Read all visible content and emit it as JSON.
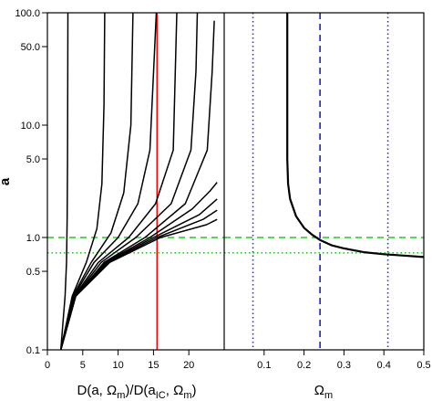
{
  "chart_data": [
    {
      "type": "line",
      "panel": "left",
      "xlabel": "D(a, Ωm)/D(aIC, Ωm)",
      "xlabel_parts": {
        "main": "D(a, Ω",
        "sub1": "m",
        "mid": ")/D(a",
        "sub2": "IC",
        "mid2": ", Ω",
        "sub3": "m",
        "end": ")"
      },
      "ylabel": "a",
      "xlim": [
        0,
        25
      ],
      "ylim": [
        0.1,
        100
      ],
      "yscale": "log",
      "xticks": [
        0,
        5,
        10,
        15,
        20
      ],
      "xtick_labels": [
        "0",
        "5",
        "10",
        "15",
        "20"
      ],
      "yticks": [
        0.1,
        0.5,
        1.0,
        5.0,
        10.0,
        50.0,
        100.0
      ],
      "ytick_labels": [
        "0.1",
        "0.5",
        "1.0",
        "5.0",
        "10.0",
        "50.0",
        "100.0"
      ],
      "grid": false,
      "series": [
        {
          "values_x": [
            1.9,
            2.5,
            2.7,
            2.8,
            2.85,
            2.88,
            2.9
          ],
          "values_y": [
            0.1,
            0.3,
            0.6,
            1.5,
            5,
            20,
            100
          ]
        },
        {
          "values_x": [
            1.9,
            3.5,
            5.5,
            7.0,
            7.7,
            8.0,
            8.1
          ],
          "values_y": [
            0.1,
            0.3,
            0.6,
            1.2,
            3,
            15,
            100
          ]
        },
        {
          "values_x": [
            1.9,
            3.6,
            6.2,
            9.0,
            10.8,
            11.8,
            12.1
          ],
          "values_y": [
            0.1,
            0.3,
            0.6,
            1.1,
            2.5,
            10,
            100
          ]
        },
        {
          "values_x": [
            1.9,
            3.7,
            6.6,
            10.0,
            12.8,
            14.5,
            15.4
          ],
          "values_y": [
            0.1,
            0.3,
            0.6,
            1.0,
            2.0,
            6,
            100
          ]
        },
        {
          "values_x": [
            1.9,
            3.8,
            7.2,
            11.5,
            15.3,
            17.8,
            18.3
          ],
          "values_y": [
            0.1,
            0.3,
            0.6,
            1.0,
            2.0,
            6,
            100
          ]
        },
        {
          "values_x": [
            1.9,
            3.9,
            7.6,
            12.5,
            17.5,
            20.3,
            21.0,
            21.2
          ],
          "values_y": [
            0.1,
            0.3,
            0.6,
            1.0,
            2.0,
            6,
            30,
            100
          ]
        },
        {
          "values_x": [
            1.9,
            4.0,
            8.0,
            13.8,
            19.5,
            22.6,
            23.3,
            23.6
          ],
          "values_y": [
            0.1,
            0.3,
            0.6,
            1.0,
            2.0,
            6,
            30,
            85
          ]
        },
        {
          "values_x": [
            1.9,
            4.0,
            8.2,
            14.5,
            20.5,
            23.0,
            24.0
          ],
          "values_y": [
            0.1,
            0.3,
            0.6,
            1.0,
            1.8,
            2.6,
            3.1
          ]
        },
        {
          "values_x": [
            1.9,
            4.0,
            8.4,
            15.0,
            21.5,
            24.0
          ],
          "values_y": [
            0.1,
            0.3,
            0.6,
            1.0,
            1.6,
            2.2
          ]
        },
        {
          "values_x": [
            1.9,
            4.0,
            8.6,
            15.5,
            22.0,
            24.0
          ],
          "values_y": [
            0.1,
            0.3,
            0.6,
            1.0,
            1.45,
            1.75
          ]
        },
        {
          "values_x": [
            1.9,
            4.0,
            8.8,
            16.0,
            22.5,
            24.0
          ],
          "values_y": [
            0.1,
            0.3,
            0.6,
            1.0,
            1.3,
            1.45
          ]
        }
      ],
      "reference_lines": [
        {
          "orientation": "vertical",
          "x": 15.5,
          "color": "#ff0000",
          "style": "solid"
        },
        {
          "orientation": "horizontal",
          "y": 1.0,
          "color": "#22cc22",
          "style": "dashed"
        },
        {
          "orientation": "horizontal",
          "y": 0.73,
          "color": "#22cc22",
          "style": "dotted"
        }
      ]
    },
    {
      "type": "line",
      "panel": "right",
      "xlabel": "Ωm",
      "xlabel_parts": {
        "main": "Ω",
        "sub1": "m"
      },
      "xlim": [
        0.0,
        0.5
      ],
      "ylim": [
        0.1,
        100
      ],
      "yscale": "log",
      "xticks": [
        0.1,
        0.2,
        0.3,
        0.4,
        0.5
      ],
      "xtick_labels": [
        "0.1",
        "0.2",
        "0.3",
        "0.4",
        "0.5"
      ],
      "grid": false,
      "series": [
        {
          "values_x": [
            0.158,
            0.158,
            0.16,
            0.165,
            0.18,
            0.2,
            0.22,
            0.24,
            0.27,
            0.3,
            0.35,
            0.4,
            0.45,
            0.5
          ],
          "values_y": [
            100,
            5.0,
            3.0,
            2.2,
            1.55,
            1.22,
            1.06,
            0.95,
            0.85,
            0.8,
            0.74,
            0.71,
            0.69,
            0.67
          ]
        }
      ],
      "reference_lines": [
        {
          "orientation": "vertical",
          "x": 0.072,
          "color": "#3333cc",
          "style": "dotted"
        },
        {
          "orientation": "vertical",
          "x": 0.24,
          "color": "#2222bb",
          "style": "dashed"
        },
        {
          "orientation": "vertical",
          "x": 0.41,
          "color": "#3333cc",
          "style": "dotted"
        },
        {
          "orientation": "horizontal",
          "y": 1.0,
          "color": "#22cc22",
          "style": "dashed"
        },
        {
          "orientation": "horizontal",
          "y": 0.73,
          "color": "#22cc22",
          "style": "dotted"
        }
      ]
    }
  ]
}
